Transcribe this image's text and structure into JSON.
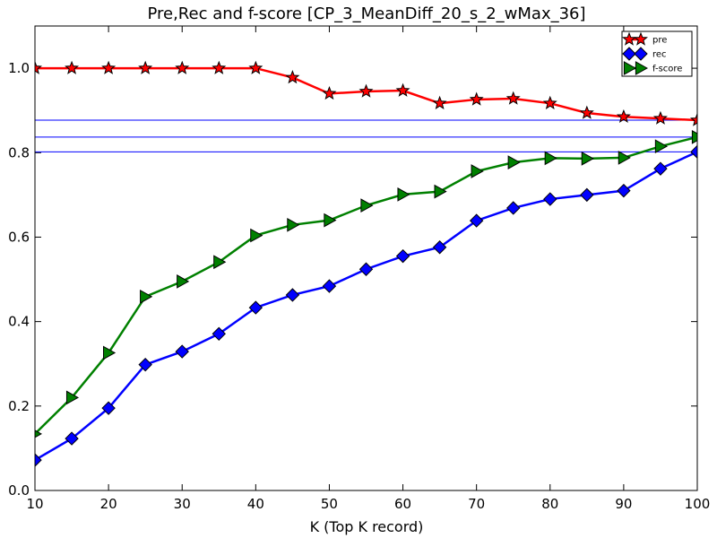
{
  "chart_data": {
    "type": "line",
    "title": "Pre,Rec and f-score [CP_3_MeanDiff_20_s_2_wMax_36]",
    "xlabel": "K (Top K record)",
    "ylabel": "",
    "xlim": [
      10,
      100
    ],
    "ylim": [
      0.0,
      1.1
    ],
    "xticks": [
      10,
      20,
      30,
      40,
      50,
      60,
      70,
      80,
      90,
      100
    ],
    "yticks": [
      0.0,
      0.2,
      0.4,
      0.6,
      0.8,
      1.0
    ],
    "xtick_labels": [
      "10",
      "20",
      "30",
      "40",
      "50",
      "60",
      "70",
      "80",
      "90",
      "100"
    ],
    "ytick_labels": [
      "0.0",
      "0.2",
      "0.4",
      "0.6",
      "0.8",
      "1.0"
    ],
    "grid": false,
    "legend_position": "top-right",
    "x": [
      10,
      15,
      20,
      25,
      30,
      35,
      40,
      45,
      50,
      55,
      60,
      65,
      70,
      75,
      80,
      85,
      90,
      95,
      100
    ],
    "series": [
      {
        "name": "pre",
        "color": "#ff0000",
        "marker": "star",
        "values": [
          1.0,
          1.0,
          1.0,
          1.0,
          1.0,
          1.0,
          1.0,
          0.978,
          0.94,
          0.945,
          0.947,
          0.917,
          0.926,
          0.928,
          0.917,
          0.894,
          0.885,
          0.881,
          0.877
        ]
      },
      {
        "name": "rec",
        "color": "#0000ff",
        "marker": "diamond",
        "values": [
          0.072,
          0.123,
          0.195,
          0.298,
          0.329,
          0.371,
          0.433,
          0.463,
          0.484,
          0.524,
          0.555,
          0.576,
          0.639,
          0.669,
          0.69,
          0.7,
          0.71,
          0.762,
          0.802
        ]
      },
      {
        "name": "f-score",
        "color": "#008000",
        "marker": "triangle-right",
        "values": [
          0.134,
          0.22,
          0.326,
          0.459,
          0.495,
          0.541,
          0.604,
          0.629,
          0.64,
          0.675,
          0.701,
          0.708,
          0.756,
          0.777,
          0.787,
          0.786,
          0.788,
          0.815,
          0.837
        ]
      }
    ],
    "hlines": [
      {
        "y": 0.877,
        "color": "#0000ff"
      },
      {
        "y": 0.837,
        "color": "#0000ff"
      },
      {
        "y": 0.802,
        "color": "#0000ff"
      }
    ]
  }
}
